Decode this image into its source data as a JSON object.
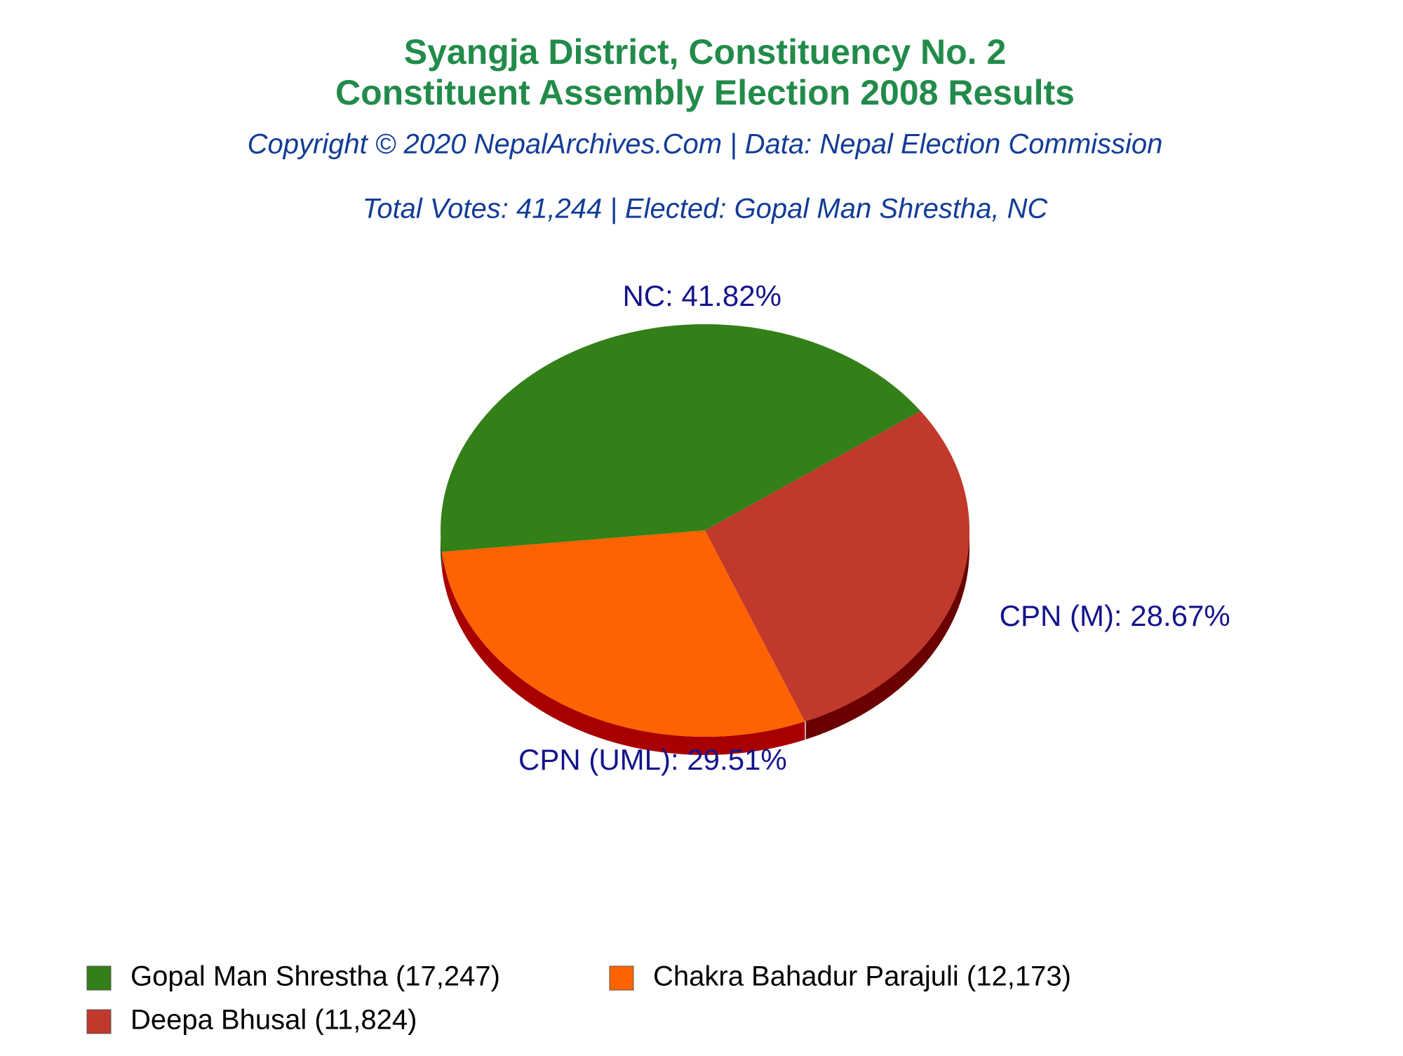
{
  "chart_data": {
    "type": "pie",
    "title": [
      "Syangja District, Constituency No. 2",
      "Constituent Assembly Election 2008 Results"
    ],
    "subtitle": "Copyright © 2020 NepalArchives.Com | Data: Nepal Election Commission",
    "summary": "Total Votes: 41,244 | Elected: Gopal Man Shrestha, NC",
    "categories": [
      "Gopal Man Shrestha (17,247)",
      "Chakra Bahadur Parajuli (12,173)",
      "Deepa Bhusal (11,824)"
    ],
    "values": [
      41.82,
      29.51,
      28.67
    ],
    "value_labels": [
      "NC: 41.82%",
      "CPN (UML): 29.51%",
      "CPN (M): 28.67%"
    ],
    "colors": [
      "#338018",
      "#ff6200",
      "#c0392b"
    ],
    "depth_colors": [
      "#1f5010",
      "#a80000",
      "#6b0000"
    ]
  }
}
